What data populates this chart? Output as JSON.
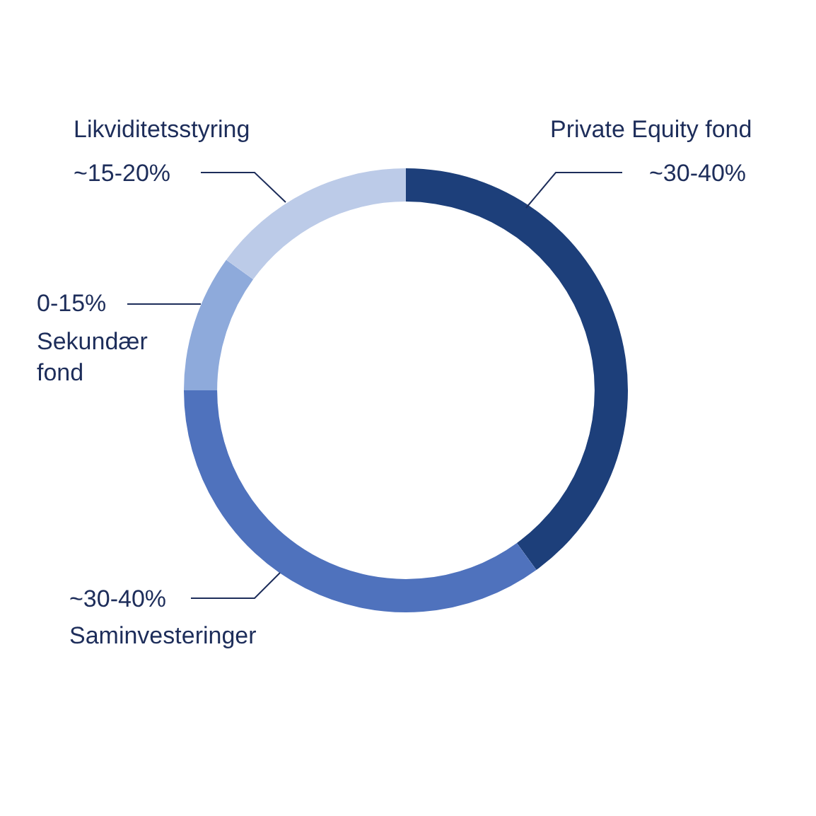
{
  "chart_data": {
    "type": "donut",
    "categories": [
      "Private Equity fond",
      "Saminvesteringer",
      "Sekundær fond",
      "Likviditetsstyring"
    ],
    "values": [
      40,
      35,
      10,
      15
    ],
    "annotations": [
      "~30-40%",
      "~30-40%",
      "0-15%",
      "~15-20%"
    ],
    "colors": [
      "#1d3f7a",
      "#4f72bd",
      "#8eaadb",
      "#bccbe8"
    ],
    "legend": false
  }
}
